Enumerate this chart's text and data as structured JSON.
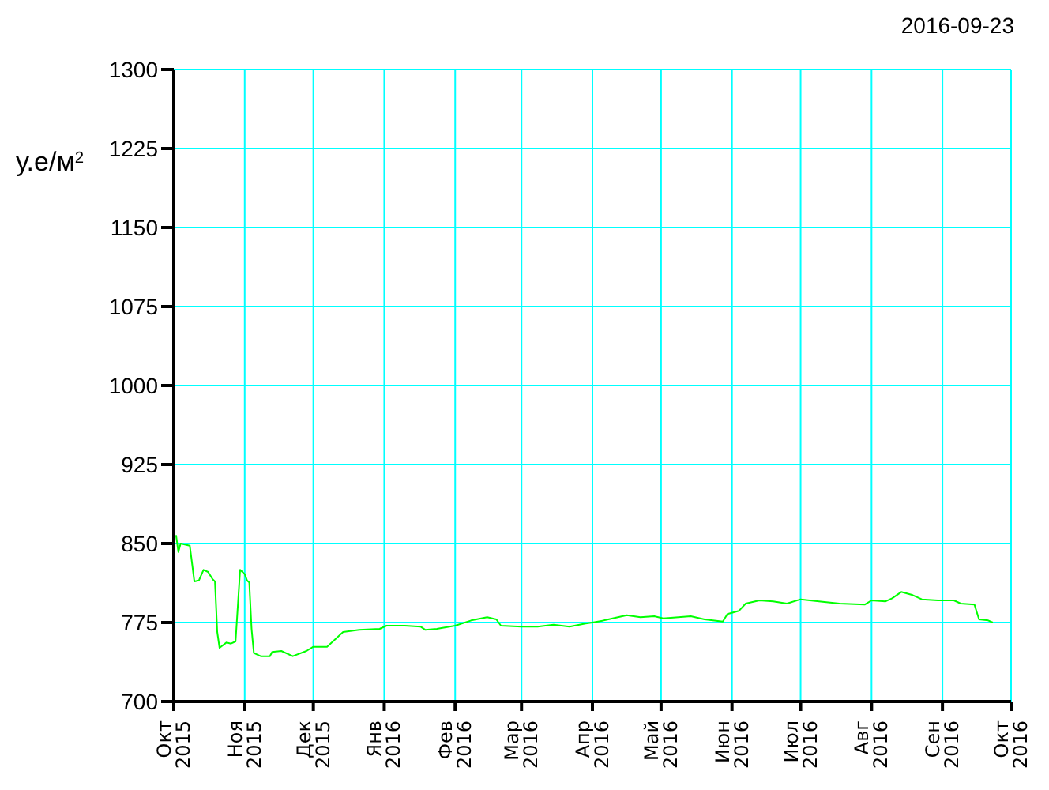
{
  "chart_data": {
    "type": "line",
    "ylabel": "у.е/м$^{2}$",
    "annotations": [
      "2016-09-23"
    ],
    "x": [
      "2015-10-02",
      "2015-10-03",
      "2015-10-04",
      "2015-10-08",
      "2015-10-10",
      "2015-10-12",
      "2015-10-14",
      "2015-10-16",
      "2015-10-18",
      "2015-10-19",
      "2015-10-20",
      "2015-10-21",
      "2015-10-24",
      "2015-10-26",
      "2015-10-28",
      "2015-10-30",
      "2015-11-01",
      "2015-11-02",
      "2015-11-03",
      "2015-11-04",
      "2015-11-05",
      "2015-11-08",
      "2015-11-12",
      "2015-11-13",
      "2015-11-17",
      "2015-11-22",
      "2015-11-28",
      "2015-12-01",
      "2015-12-07",
      "2015-12-10",
      "2015-12-14",
      "2015-12-21",
      "2015-12-30",
      "2016-01-02",
      "2016-01-10",
      "2016-01-17",
      "2016-01-19",
      "2016-01-24",
      "2016-02-01",
      "2016-02-08",
      "2016-02-15",
      "2016-02-19",
      "2016-02-21",
      "2016-03-01",
      "2016-03-08",
      "2016-03-15",
      "2016-03-22",
      "2016-03-29",
      "2016-04-01",
      "2016-04-06",
      "2016-04-16",
      "2016-04-22",
      "2016-04-28",
      "2016-05-02",
      "2016-05-14",
      "2016-05-20",
      "2016-05-28",
      "2016-05-30",
      "2016-06-04",
      "2016-06-07",
      "2016-06-13",
      "2016-06-19",
      "2016-06-25",
      "2016-07-01",
      "2016-07-09",
      "2016-07-18",
      "2016-07-29",
      "2016-08-01",
      "2016-08-07",
      "2016-08-10",
      "2016-08-14",
      "2016-08-19",
      "2016-08-23",
      "2016-08-30",
      "2016-09-06",
      "2016-09-09",
      "2016-09-15",
      "2016-09-17",
      "2016-09-21",
      "2016-09-23"
    ],
    "series": [
      {
        "color": "#00ff00",
        "values": [
          858,
          842,
          850,
          848,
          814,
          815,
          825,
          823,
          816,
          814,
          766,
          751,
          756,
          755,
          757,
          825,
          821,
          815,
          813,
          769,
          746,
          743,
          743,
          747,
          748,
          743,
          748,
          752,
          752,
          758,
          766,
          768,
          769,
          772,
          772,
          771,
          768,
          769,
          772,
          777,
          780,
          778,
          772,
          771,
          771,
          773,
          771,
          774,
          775,
          777,
          782,
          780,
          781,
          779,
          781,
          778,
          776,
          783,
          786,
          793,
          796,
          795,
          793,
          797,
          795,
          793,
          792,
          796,
          795,
          798,
          804,
          801,
          797,
          796,
          796,
          793,
          792,
          778,
          777,
          775
        ]
      }
    ],
    "xlim": [
      "2015-10-01",
      "2016-10-01"
    ],
    "xticks": [
      {
        "value": "2015-10-01",
        "label": "Окт\n2015"
      },
      {
        "value": "2015-11-01",
        "label": "Ноя\n2015"
      },
      {
        "value": "2015-12-01",
        "label": "Дек\n2015"
      },
      {
        "value": "2016-01-01",
        "label": "Янв\n2016"
      },
      {
        "value": "2016-02-01",
        "label": "Фев\n2016"
      },
      {
        "value": "2016-03-01",
        "label": "Мар\n2016"
      },
      {
        "value": "2016-04-01",
        "label": "Апр\n2016"
      },
      {
        "value": "2016-05-01",
        "label": "Май\n2016"
      },
      {
        "value": "2016-06-01",
        "label": "Июн\n2016"
      },
      {
        "value": "2016-07-01",
        "label": "Июл\n2016"
      },
      {
        "value": "2016-08-01",
        "label": "Авг\n2016"
      },
      {
        "value": "2016-09-01",
        "label": "Сен\n2016"
      },
      {
        "value": "2016-10-01",
        "label": "Окт\n2016"
      }
    ],
    "ylim": [
      700,
      1300
    ],
    "yticks": [
      700,
      775,
      850,
      925,
      1000,
      1075,
      1150,
      1225,
      1300
    ],
    "grid": true,
    "legend": false,
    "marker": "none",
    "line_style": "solid"
  }
}
